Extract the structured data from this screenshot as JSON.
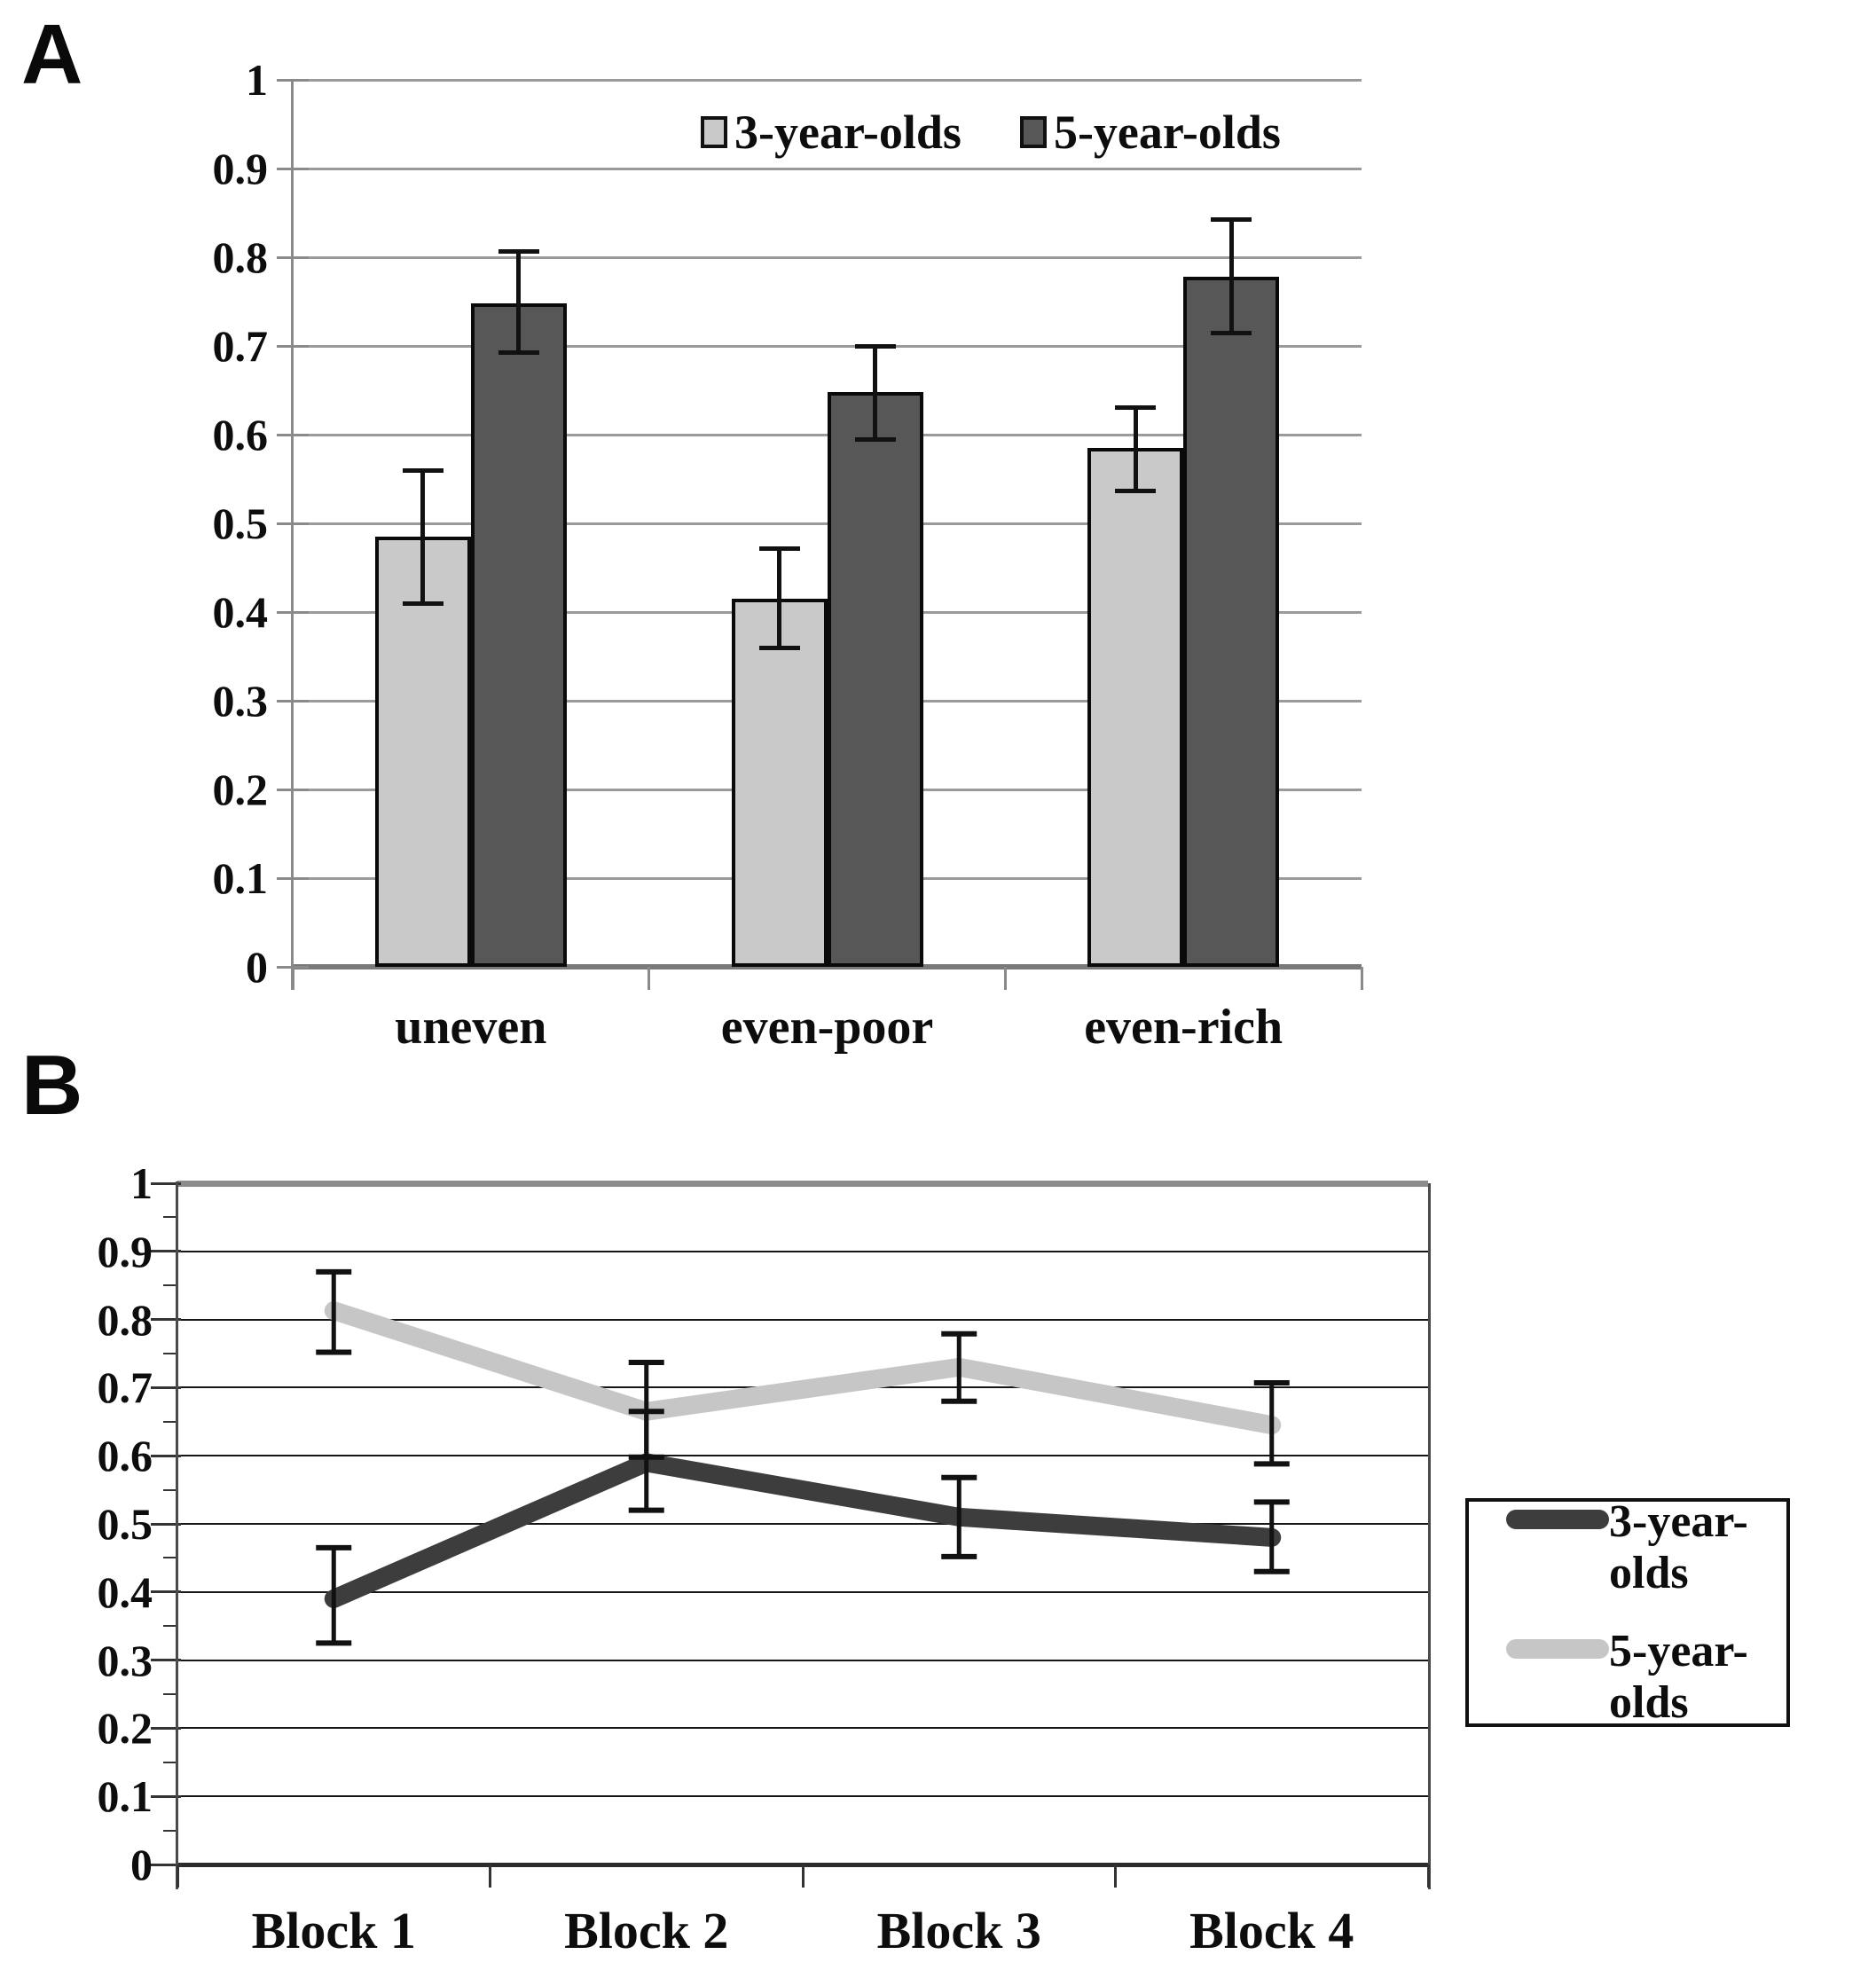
{
  "panels": {
    "a": {
      "label": "A"
    },
    "b": {
      "label": "B"
    }
  },
  "chart_data": [
    {
      "id": "panel-a",
      "type": "bar",
      "title": "",
      "xlabel": "",
      "ylabel": "",
      "ylim": [
        0,
        1
      ],
      "grid": "horizontal",
      "legend_position": "top-inside",
      "yticks": [
        "1",
        "0.9",
        "0.8",
        "0.7",
        "0.6",
        "0.5",
        "0.4",
        "0.3",
        "0.2",
        "0.1",
        "0"
      ],
      "ytick_values": [
        1,
        0.9,
        0.8,
        0.7,
        0.6,
        0.5,
        0.4,
        0.3,
        0.2,
        0.1,
        0
      ],
      "categories": [
        "uneven",
        "even-poor",
        "even-rich"
      ],
      "series": [
        {
          "name": "3-year-olds",
          "color": "#c9c9c9",
          "values": [
            0.485,
            0.415,
            0.585
          ],
          "err_low": [
            0.41,
            0.36,
            0.537
          ],
          "err_high": [
            0.56,
            0.472,
            0.631
          ]
        },
        {
          "name": "5-year-olds",
          "color": "#575757",
          "values": [
            0.748,
            0.648,
            0.778
          ],
          "err_low": [
            0.693,
            0.595,
            0.715
          ],
          "err_high": [
            0.807,
            0.7,
            0.843
          ]
        }
      ]
    },
    {
      "id": "panel-b",
      "type": "line",
      "title": "",
      "xlabel": "",
      "ylabel": "",
      "ylim": [
        0,
        1
      ],
      "grid": "horizontal",
      "legend_position": "right-outside",
      "yticks": [
        "1",
        "0.9",
        "0.8",
        "0.7",
        "0.6",
        "0.5",
        "0.4",
        "0.3",
        "0.2",
        "0.1",
        "0"
      ],
      "ytick_values": [
        1,
        0.9,
        0.8,
        0.7,
        0.6,
        0.5,
        0.4,
        0.3,
        0.2,
        0.1,
        0
      ],
      "categories": [
        "Block 1",
        "Block 2",
        "Block 3",
        "Block 4"
      ],
      "series": [
        {
          "name": "3-year-olds",
          "color": "#3d3d3d",
          "values": [
            0.39,
            0.59,
            0.51,
            0.48
          ],
          "err_low": [
            0.325,
            0.52,
            0.452,
            0.43
          ],
          "err_high": [
            0.465,
            0.665,
            0.568,
            0.532
          ]
        },
        {
          "name": "5-year-olds",
          "color": "#c6c6c6",
          "values": [
            0.813,
            0.665,
            0.73,
            0.645
          ],
          "err_low": [
            0.752,
            0.598,
            0.68,
            0.588
          ],
          "err_high": [
            0.87,
            0.737,
            0.779,
            0.707
          ]
        }
      ]
    }
  ]
}
